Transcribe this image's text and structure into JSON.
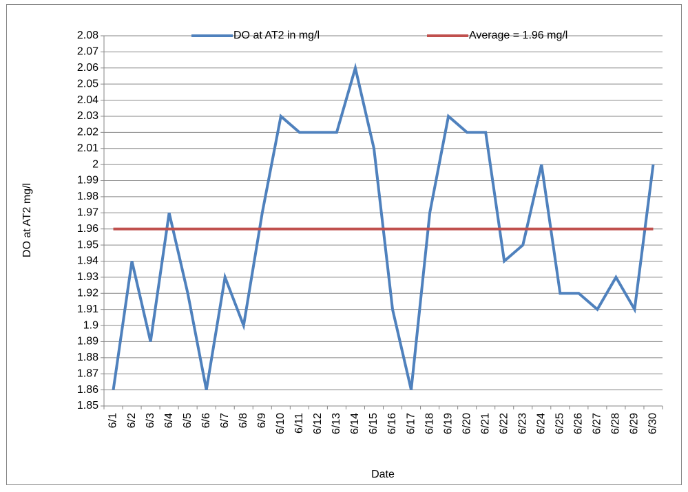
{
  "chart_data": {
    "type": "line",
    "xlabel": "Date",
    "ylabel": "DO at AT2 mg/l",
    "categories": [
      "6/1",
      "6/2",
      "6/3",
      "6/4",
      "6/5",
      "6/6",
      "6/7",
      "6/8",
      "6/9",
      "6/10",
      "6/11",
      "6/12",
      "6/13",
      "6/14",
      "6/15",
      "6/16",
      "6/17",
      "6/18",
      "6/19",
      "6/20",
      "6/21",
      "6/22",
      "6/23",
      "6/24",
      "6/25",
      "6/26",
      "6/27",
      "6/28",
      "6/29",
      "6/30"
    ],
    "series": [
      {
        "name": "DO at AT2 in mg/l",
        "color": "#4f81bd",
        "values": [
          1.86,
          1.94,
          1.89,
          1.97,
          1.92,
          1.86,
          1.93,
          1.9,
          1.97,
          2.03,
          2.02,
          2.02,
          2.02,
          2.06,
          2.01,
          1.91,
          1.86,
          1.97,
          2.03,
          2.02,
          2.02,
          1.94,
          1.95,
          2,
          1.92,
          1.92,
          1.91,
          1.93,
          1.91,
          2
        ]
      },
      {
        "name": "Average = 1.96 mg/l",
        "color": "#c0504d",
        "values": [
          1.96,
          1.96,
          1.96,
          1.96,
          1.96,
          1.96,
          1.96,
          1.96,
          1.96,
          1.96,
          1.96,
          1.96,
          1.96,
          1.96,
          1.96,
          1.96,
          1.96,
          1.96,
          1.96,
          1.96,
          1.96,
          1.96,
          1.96,
          1.96,
          1.96,
          1.96,
          1.96,
          1.96,
          1.96,
          1.96
        ]
      }
    ],
    "ylim": [
      1.85,
      2.08
    ],
    "yticks": [
      1.85,
      1.86,
      1.87,
      1.88,
      1.89,
      1.9,
      1.91,
      1.92,
      1.93,
      1.94,
      1.95,
      1.96,
      1.97,
      1.98,
      1.99,
      2,
      2.01,
      2.02,
      2.03,
      2.04,
      2.05,
      2.06,
      2.07,
      2.08
    ],
    "grid": true,
    "legend": "top"
  }
}
